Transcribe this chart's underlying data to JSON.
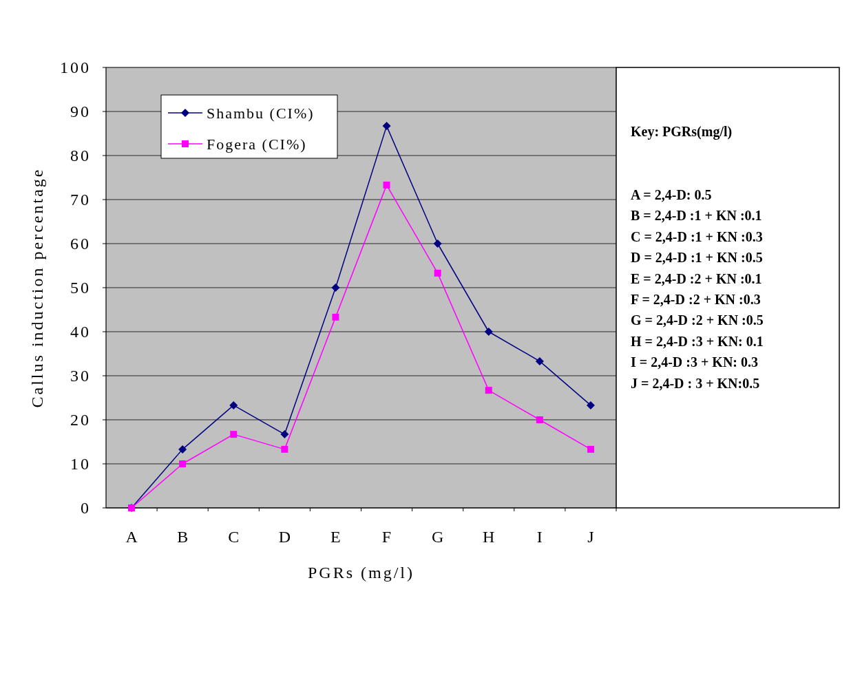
{
  "chart_data": {
    "type": "line",
    "xlabel": "PGRs (mg/l)",
    "ylabel": "Callus induction percentage",
    "categories": [
      "A",
      "B",
      "C",
      "D",
      "E",
      "F",
      "G",
      "H",
      "I",
      "J"
    ],
    "series": [
      {
        "name": "Shambu (CI%)",
        "color": "#000080",
        "marker": "diamond",
        "values": [
          0,
          13.3,
          23.3,
          16.7,
          50,
          86.7,
          60,
          40,
          33.3,
          23.3
        ]
      },
      {
        "name": "Fogera (CI%)",
        "color": "#ff00ff",
        "marker": "square",
        "values": [
          0,
          10,
          16.7,
          13.3,
          43.3,
          73.3,
          53.3,
          26.7,
          20,
          13.3
        ]
      }
    ],
    "ylim": [
      0,
      100
    ],
    "yticks": [
      0,
      10,
      20,
      30,
      40,
      50,
      60,
      70,
      80,
      90,
      100
    ],
    "grid": "y",
    "legend": "top left",
    "line_style": "solid",
    "annotations": [
      "Key: PGRs(mg/l)",
      "A  =  2,4-D: 0.5",
      "B  =  2,4-D :1 + KN :0.1",
      "C  =  2,4-D :1 +  KN :0.3",
      "D  =  2,4-D :1 +  KN :0.5",
      "E  =  2,4-D :2 +  KN :0.1",
      "F  =  2,4-D :2 +  KN :0.3",
      "G  =  2,4-D :2 +  KN :0.5",
      "H  =  2,4-D :3  + KN: 0.1",
      "I  =  2,4-D :3 +  KN: 0.3",
      "J  =  2,4-D : 3 +  KN:0.5"
    ]
  }
}
